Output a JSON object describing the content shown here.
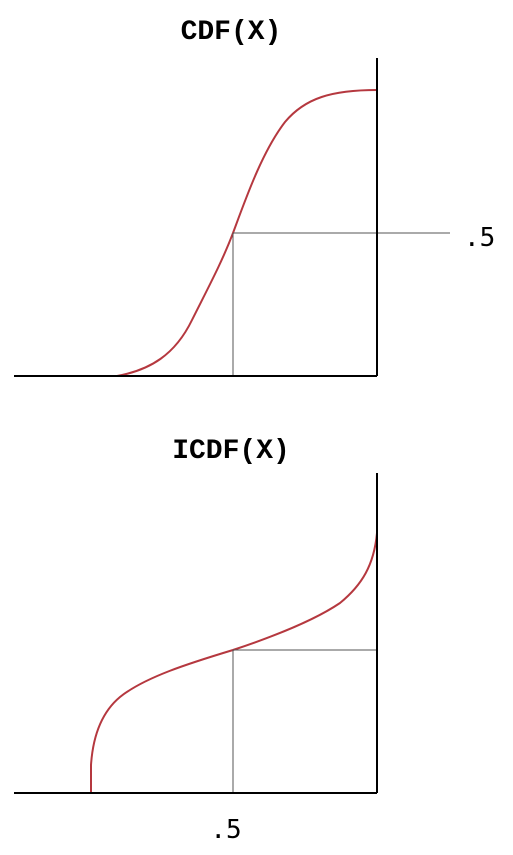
{
  "colors": {
    "curve": "#b5383f",
    "axis": "#000000",
    "guide": "#555555",
    "background": "#ffffff"
  },
  "diagrams": [
    {
      "title": "CDF(X)",
      "tick_label": ".5"
    },
    {
      "title": "ICDF(X)",
      "tick_label": ".5"
    }
  ]
}
